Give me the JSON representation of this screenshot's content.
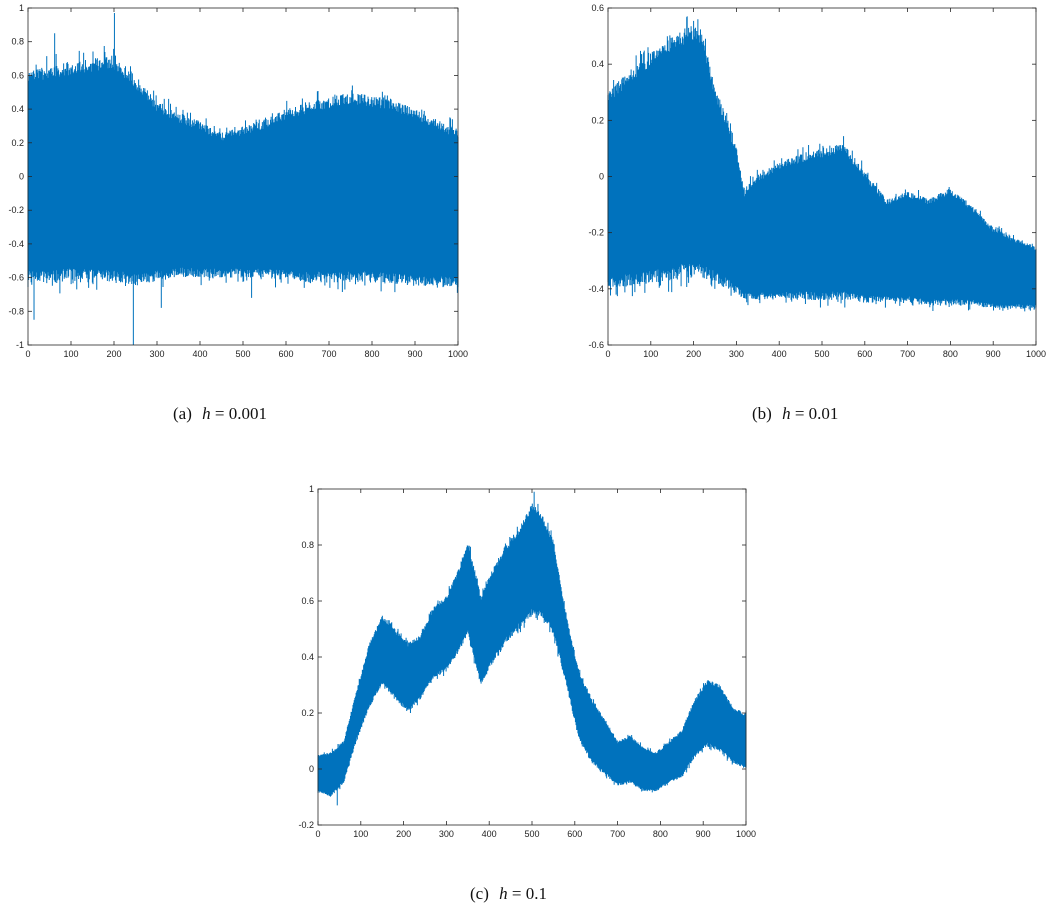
{
  "chart_data": [
    {
      "type": "line",
      "tag": "(a)",
      "caption_var": "h",
      "caption_value": "= 0.001",
      "color": "#0072bd",
      "xlim": [
        0,
        1000
      ],
      "ylim": [
        -1,
        1
      ],
      "xticks": [
        "0",
        "100",
        "200",
        "300",
        "400",
        "500",
        "600",
        "700",
        "800",
        "900",
        "1000"
      ],
      "yticks": [
        "-1",
        "-0.8",
        "-0.6",
        "-0.4",
        "-0.2",
        "0",
        "0.2",
        "0.4",
        "0.6",
        "0.8",
        "1"
      ],
      "envelope": {
        "x": [
          0,
          50,
          100,
          150,
          200,
          250,
          300,
          350,
          400,
          450,
          500,
          550,
          600,
          650,
          700,
          750,
          800,
          850,
          900,
          950,
          1000
        ],
        "upper": [
          0.62,
          0.66,
          0.68,
          0.7,
          0.72,
          0.6,
          0.45,
          0.38,
          0.33,
          0.26,
          0.3,
          0.34,
          0.4,
          0.44,
          0.47,
          0.5,
          0.48,
          0.46,
          0.4,
          0.34,
          0.28
        ],
        "lower": [
          -0.62,
          -0.64,
          -0.62,
          -0.63,
          -0.64,
          -0.65,
          -0.62,
          -0.6,
          -0.6,
          -0.6,
          -0.6,
          -0.6,
          -0.62,
          -0.63,
          -0.63,
          -0.63,
          -0.63,
          -0.64,
          -0.65,
          -0.65,
          -0.66
        ]
      },
      "spikes": [
        [
          14,
          -0.85
        ],
        [
          62,
          0.85
        ],
        [
          201,
          0.97
        ],
        [
          245,
          -1.0
        ],
        [
          310,
          -0.78
        ],
        [
          520,
          -0.72
        ]
      ]
    },
    {
      "type": "line",
      "tag": "(b)",
      "caption_var": "h",
      "caption_value": "= 0.01",
      "color": "#0072bd",
      "xlim": [
        0,
        1000
      ],
      "ylim": [
        -0.6,
        0.6
      ],
      "xticks": [
        "0",
        "100",
        "200",
        "300",
        "400",
        "500",
        "600",
        "700",
        "800",
        "900",
        "1000"
      ],
      "yticks": [
        "-0.6",
        "-0.4",
        "-0.2",
        "0",
        "0.2",
        "0.4",
        "0.6"
      ],
      "envelope": {
        "x": [
          0,
          50,
          100,
          150,
          200,
          220,
          250,
          280,
          300,
          320,
          340,
          400,
          450,
          500,
          550,
          600,
          650,
          700,
          750,
          800,
          850,
          900,
          950,
          1000
        ],
        "upper": [
          0.3,
          0.38,
          0.44,
          0.5,
          0.54,
          0.52,
          0.32,
          0.2,
          0.1,
          -0.05,
          0.0,
          0.05,
          0.08,
          0.1,
          0.12,
          0.02,
          -0.08,
          -0.05,
          -0.08,
          -0.04,
          -0.1,
          -0.18,
          -0.22,
          -0.25
        ],
        "lower": [
          -0.4,
          -0.39,
          -0.38,
          -0.37,
          -0.36,
          -0.36,
          -0.38,
          -0.4,
          -0.42,
          -0.44,
          -0.44,
          -0.44,
          -0.44,
          -0.44,
          -0.44,
          -0.45,
          -0.45,
          -0.45,
          -0.46,
          -0.46,
          -0.46,
          -0.47,
          -0.47,
          -0.47
        ]
      },
      "spikes": [
        [
          185,
          0.57
        ],
        [
          210,
          0.56
        ]
      ]
    },
    {
      "type": "line",
      "tag": "(c)",
      "caption_var": "h",
      "caption_value": "= 0.1",
      "color": "#0072bd",
      "xlim": [
        0,
        1000
      ],
      "ylim": [
        -0.2,
        1
      ],
      "xticks": [
        "0",
        "100",
        "200",
        "300",
        "400",
        "500",
        "600",
        "700",
        "800",
        "900",
        "1000"
      ],
      "yticks": [
        "-0.2",
        "0",
        "0.2",
        "0.4",
        "0.6",
        "0.8",
        "1"
      ],
      "envelope": {
        "x": [
          0,
          30,
          60,
          90,
          120,
          150,
          180,
          210,
          240,
          270,
          300,
          330,
          350,
          380,
          410,
          440,
          470,
          500,
          520,
          550,
          580,
          610,
          640,
          670,
          700,
          730,
          760,
          790,
          820,
          850,
          880,
          910,
          940,
          970,
          1000
        ],
        "upper": [
          0.05,
          0.06,
          0.1,
          0.28,
          0.45,
          0.55,
          0.5,
          0.45,
          0.48,
          0.58,
          0.62,
          0.72,
          0.82,
          0.62,
          0.72,
          0.8,
          0.86,
          0.95,
          0.92,
          0.82,
          0.55,
          0.35,
          0.25,
          0.18,
          0.1,
          0.12,
          0.08,
          0.06,
          0.1,
          0.14,
          0.25,
          0.32,
          0.3,
          0.22,
          0.2
        ],
        "lower": [
          -0.08,
          -0.1,
          -0.05,
          0.1,
          0.22,
          0.3,
          0.25,
          0.2,
          0.25,
          0.32,
          0.35,
          0.42,
          0.48,
          0.3,
          0.38,
          0.45,
          0.5,
          0.55,
          0.55,
          0.48,
          0.3,
          0.1,
          0.02,
          -0.02,
          -0.06,
          -0.05,
          -0.08,
          -0.08,
          -0.05,
          -0.03,
          0.04,
          0.08,
          0.06,
          0.02,
          0.0
        ]
      },
      "spikes": [
        [
          505,
          0.99
        ],
        [
          45,
          -0.13
        ]
      ]
    }
  ]
}
